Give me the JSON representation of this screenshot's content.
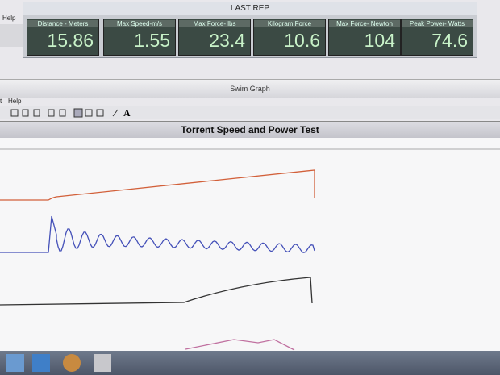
{
  "window": {
    "title": "LAST REP",
    "readouts": [
      {
        "label": "Distance - Meters",
        "value": "15.86"
      },
      {
        "label": "Max Speed-m/s",
        "value": "1.55"
      },
      {
        "label": "Max Force- lbs",
        "value": "23.4"
      },
      {
        "label": "Kilogram Force",
        "value": "10.6"
      },
      {
        "label": "Max Force- Newton",
        "value": "104"
      },
      {
        "label": "Peak Power- Watts",
        "value": "74.6"
      }
    ]
  },
  "menu_top": [
    "Help"
  ],
  "swim_graph": "Swim Graph",
  "menu_graph": [
    "t",
    "Help"
  ],
  "toolbar_text": "A",
  "graph_title": "Torrent Speed and Power Test"
}
